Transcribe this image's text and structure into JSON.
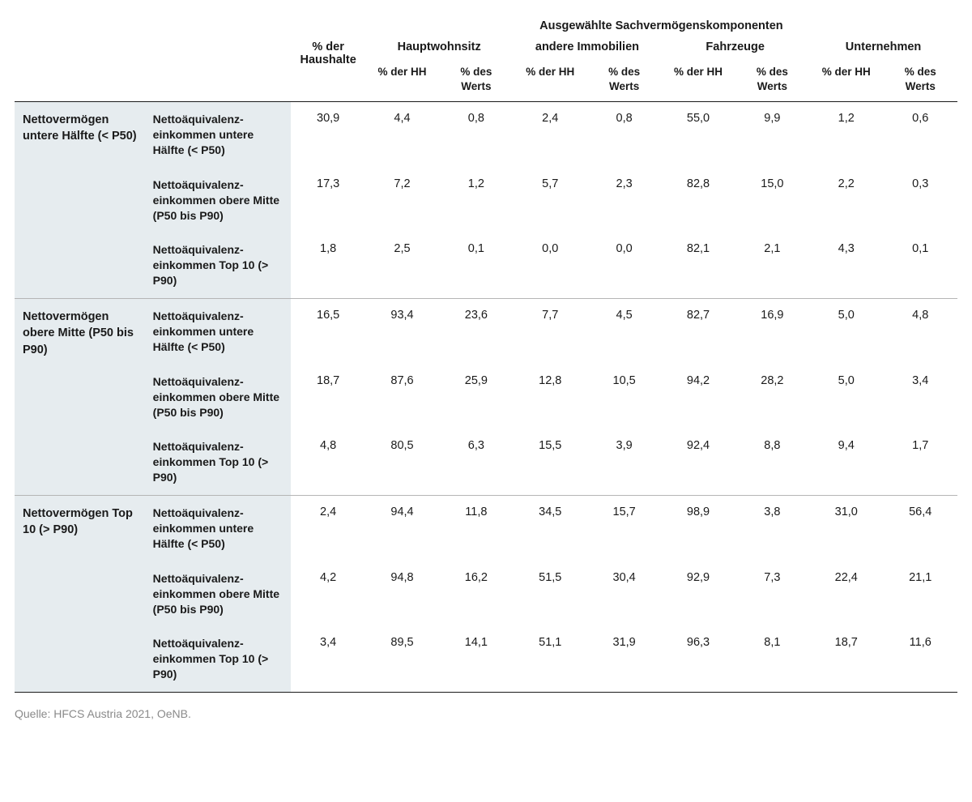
{
  "colors": {
    "text": "#1a1a1a",
    "rowheader_bg": "#e6ecef",
    "rule_dark": "#1a1a1a",
    "rule_light": "#b5b5b5",
    "source_text": "#8a8a8a",
    "background": "#ffffff"
  },
  "typography": {
    "base_font_size_pt": 11,
    "header_weight": 600,
    "body_weight": 400
  },
  "header": {
    "super": "Ausgewählte Sachvermögenskomponenten",
    "pct_hh": "% der Haushalte",
    "groups": {
      "main_residence": "Hauptwohnsitz",
      "other_property": "andere Immobilien",
      "vehicles": "Fahrzeuge",
      "businesses": "Unternehmen"
    },
    "sub_pct_hh": "% der HH",
    "sub_pct_val": "% des Werts"
  },
  "wealth_groups": [
    {
      "label": "Nettovermögen untere Hälfte (< P50)",
      "rows": [
        {
          "income_label": "Nettoäquivalenz­einkommen untere Hälfte (< P50)",
          "v": [
            "30,9",
            "4,4",
            "0,8",
            "2,4",
            "0,8",
            "55,0",
            "9,9",
            "1,2",
            "0,6"
          ]
        },
        {
          "income_label": "Nettoäquivalenz­einkommen obere Mitte (P50 bis P90)",
          "v": [
            "17,3",
            "7,2",
            "1,2",
            "5,7",
            "2,3",
            "82,8",
            "15,0",
            "2,2",
            "0,3"
          ]
        },
        {
          "income_label": "Nettoäquivalenz­einkommen Top 10 (> P90)",
          "v": [
            "1,8",
            "2,5",
            "0,1",
            "0,0",
            "0,0",
            "82,1",
            "2,1",
            "4,3",
            "0,1"
          ]
        }
      ]
    },
    {
      "label": "Nettovermögen obere Mitte (P50 bis P90)",
      "rows": [
        {
          "income_label": "Nettoäquivalenz­einkommen untere Hälfte (< P50)",
          "v": [
            "16,5",
            "93,4",
            "23,6",
            "7,7",
            "4,5",
            "82,7",
            "16,9",
            "5,0",
            "4,8"
          ]
        },
        {
          "income_label": "Nettoäquivalenz­einkommen obere Mitte (P50 bis P90)",
          "v": [
            "18,7",
            "87,6",
            "25,9",
            "12,8",
            "10,5",
            "94,2",
            "28,2",
            "5,0",
            "3,4"
          ]
        },
        {
          "income_label": "Nettoäquivalenz­einkommen Top 10 (> P90)",
          "v": [
            "4,8",
            "80,5",
            "6,3",
            "15,5",
            "3,9",
            "92,4",
            "8,8",
            "9,4",
            "1,7"
          ]
        }
      ]
    },
    {
      "label": "Nettovermögen Top 10 (> P90)",
      "rows": [
        {
          "income_label": "Nettoäquivalenz­einkommen untere Hälfte (< P50)",
          "v": [
            "2,4",
            "94,4",
            "11,8",
            "34,5",
            "15,7",
            "98,9",
            "3,8",
            "31,0",
            "56,4"
          ]
        },
        {
          "income_label": "Nettoäquivalenz­einkommen obere Mitte (P50 bis P90)",
          "v": [
            "4,2",
            "94,8",
            "16,2",
            "51,5",
            "30,4",
            "92,9",
            "7,3",
            "22,4",
            "21,1"
          ]
        },
        {
          "income_label": "Nettoäquivalenz­einkommen Top 10 (> P90)",
          "v": [
            "3,4",
            "89,5",
            "14,1",
            "51,1",
            "31,9",
            "96,3",
            "8,1",
            "18,7",
            "11,6"
          ]
        }
      ]
    }
  ],
  "source": "Quelle: HFCS Austria 2021, OeNB."
}
